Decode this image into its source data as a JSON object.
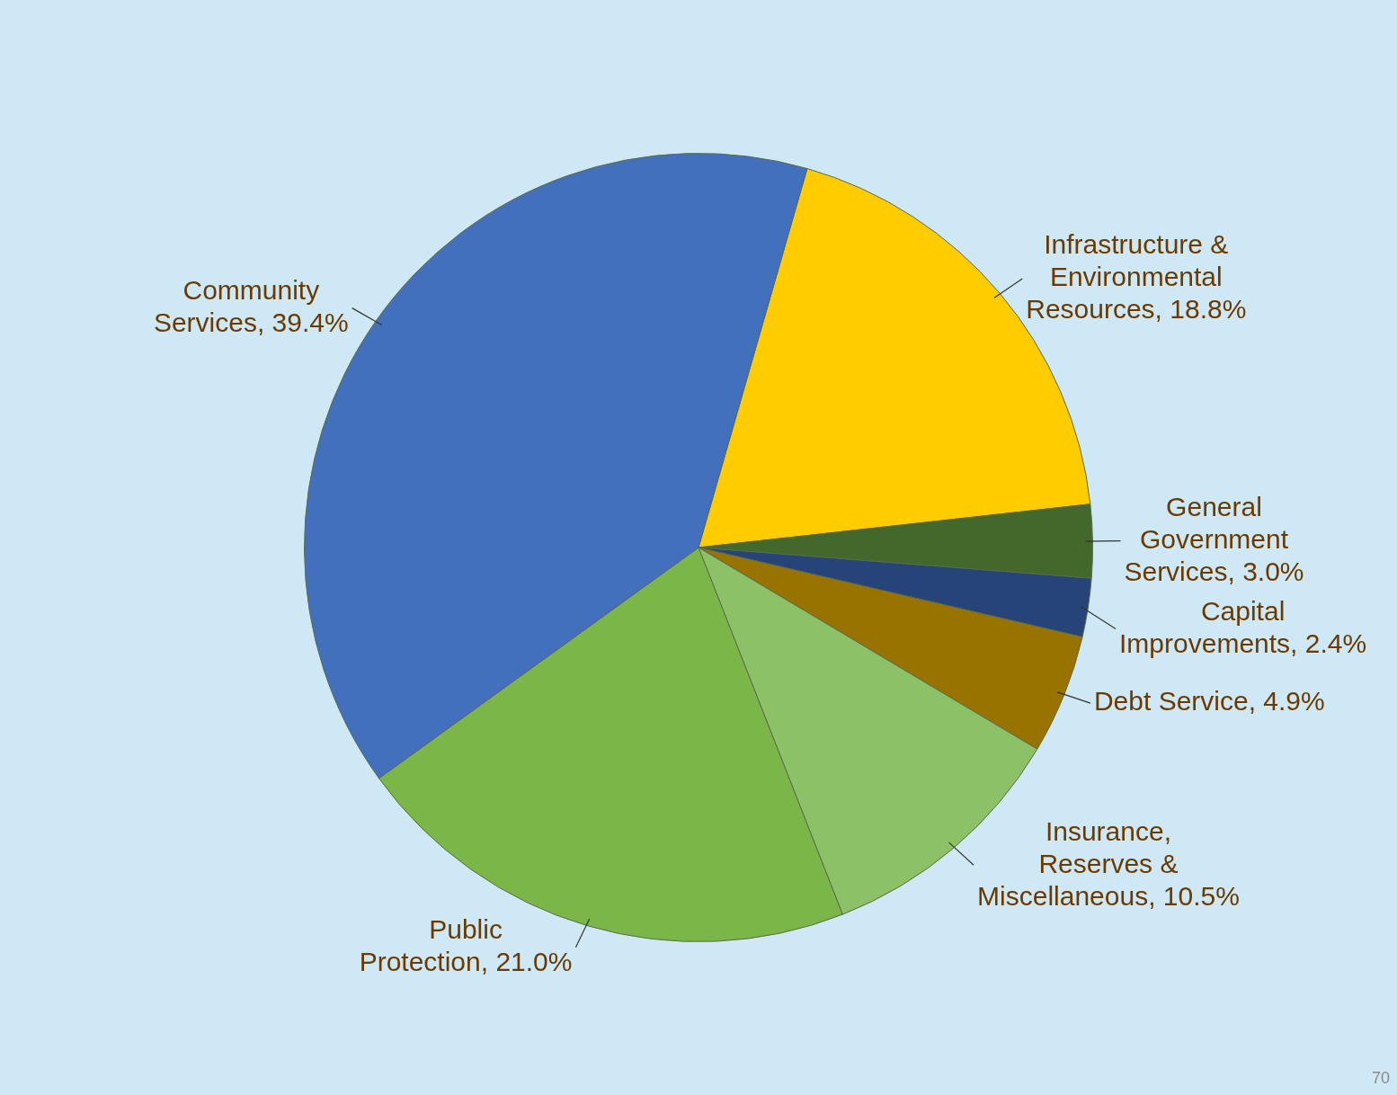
{
  "chart_data": {
    "type": "pie",
    "categories": [
      "Infrastructure & Environmental Resources",
      "General Government Services",
      "Capital Improvements",
      "Debt Service",
      "Insurance, Reserves & Miscellaneous",
      "Public Protection",
      "Community Services"
    ],
    "values": [
      18.8,
      3.0,
      2.4,
      4.9,
      10.5,
      21.0,
      39.4
    ],
    "value_labels": [
      "18.8%",
      "3.0%",
      "2.4%",
      "4.9%",
      "10.5%",
      "21.0%",
      "39.4%"
    ],
    "colors": [
      "#ffcc00",
      "#43682b",
      "#264478",
      "#997300",
      "#8cc168",
      "#7ab648",
      "#4270bd"
    ],
    "legend": false,
    "annotations": [
      "70"
    ]
  }
}
